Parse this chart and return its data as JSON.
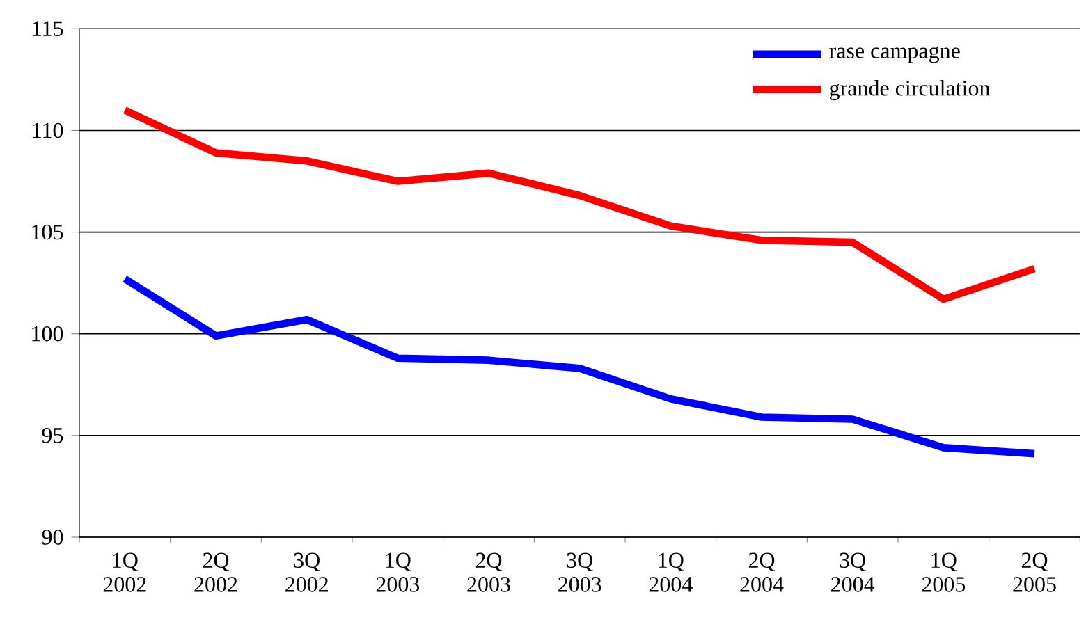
{
  "chart_data": {
    "type": "line",
    "categories": [
      "1Q 2002",
      "2Q 2002",
      "3Q 2002",
      "1Q 2003",
      "2Q 2003",
      "3Q 2003",
      "1Q 2004",
      "2Q 2004",
      "3Q 2004",
      "1Q 2005",
      "2Q 2005"
    ],
    "series": [
      {
        "name": "rase campagne",
        "color": "#0000ff",
        "values": [
          102.7,
          99.9,
          100.7,
          98.8,
          98.7,
          98.3,
          96.8,
          95.9,
          95.8,
          94.4,
          94.1
        ]
      },
      {
        "name": "grande circulation",
        "color": "#ff0000",
        "values": [
          111.0,
          108.9,
          108.5,
          107.5,
          107.9,
          106.8,
          105.3,
          104.6,
          104.5,
          101.7,
          103.2
        ]
      }
    ],
    "ylim": [
      90,
      115
    ],
    "yticks": [
      90,
      95,
      100,
      105,
      110,
      115
    ],
    "grid": "y",
    "legend": "top right",
    "marker": "none",
    "line_style": "solid"
  }
}
